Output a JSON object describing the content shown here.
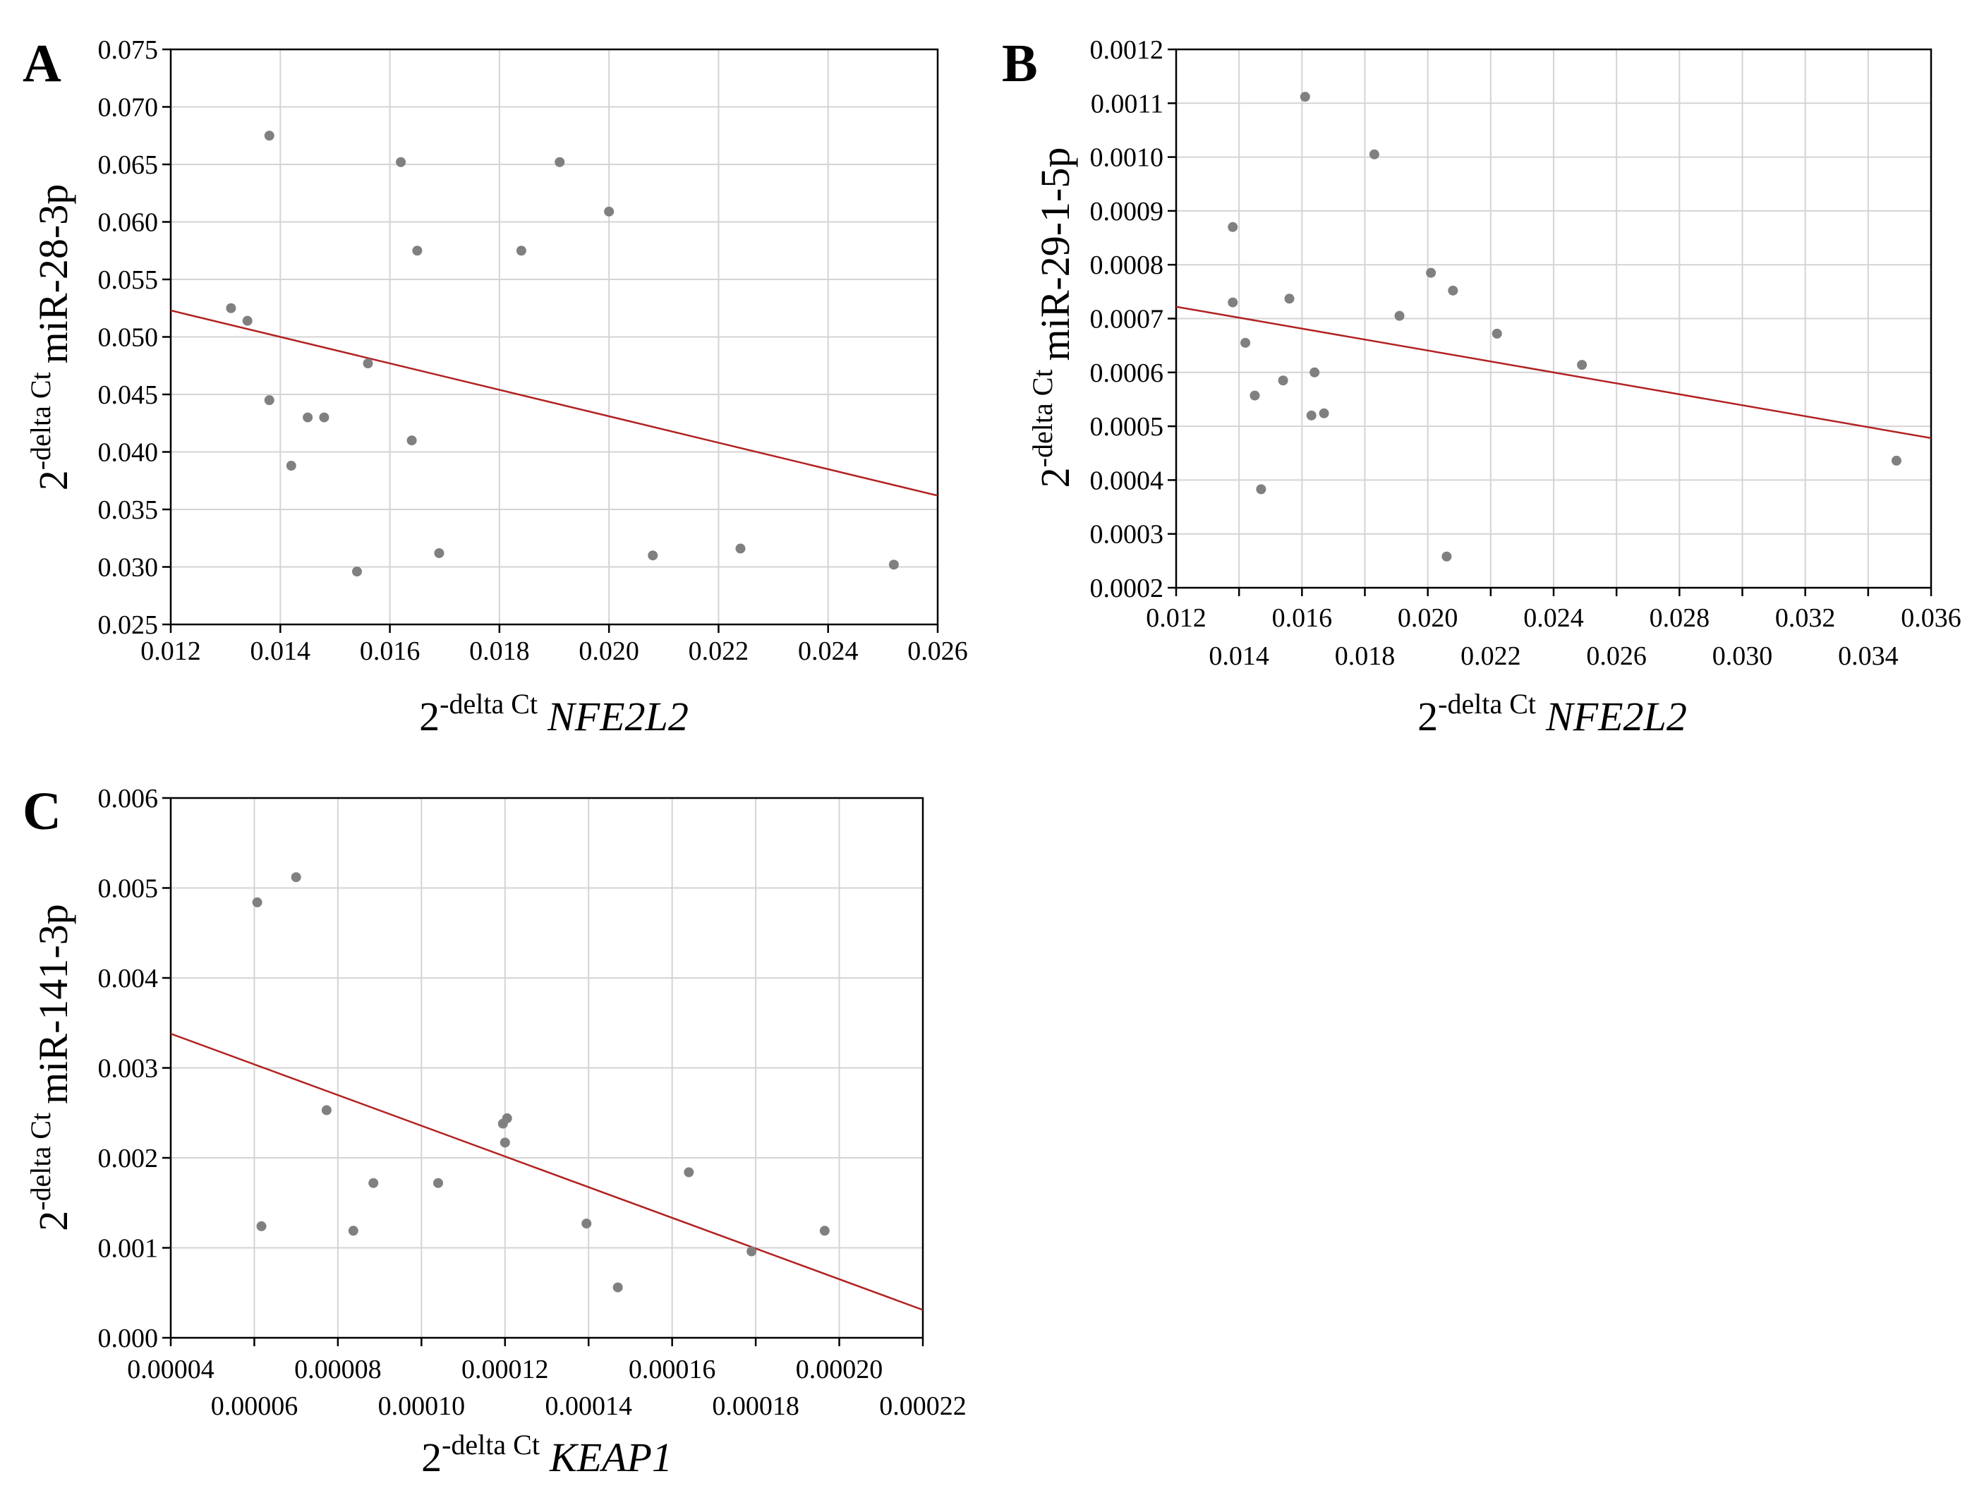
{
  "chart_data": [
    {
      "panel_label": "A",
      "type": "scatter",
      "xlabel": {
        "prefix": "2",
        "sup": "-delta Ct",
        "name": "NFE2L2"
      },
      "ylabel": {
        "prefix": "2",
        "sup": "-delta Ct",
        "name": "miR-28-3p"
      },
      "xlim": [
        0.012,
        0.026
      ],
      "ylim": [
        0.025,
        0.075
      ],
      "x_ticks": [
        0.012,
        0.014,
        0.016,
        0.018,
        0.02,
        0.022,
        0.024,
        0.026
      ],
      "x_tick_labels": [
        "0.012",
        "0.014",
        "0.016",
        "0.018",
        "0.020",
        "0.022",
        "0.024",
        "0.026"
      ],
      "x_tick_label_stagger": false,
      "y_ticks": [
        0.025,
        0.03,
        0.035,
        0.04,
        0.045,
        0.05,
        0.055,
        0.06,
        0.065,
        0.07,
        0.075
      ],
      "y_tick_labels": [
        "0.025",
        "0.030",
        "0.035",
        "0.040",
        "0.045",
        "0.050",
        "0.055",
        "0.060",
        "0.065",
        "0.070",
        "0.075"
      ],
      "grid": true,
      "points": [
        [
          0.0131,
          0.0525
        ],
        [
          0.0134,
          0.0514
        ],
        [
          0.0138,
          0.0675
        ],
        [
          0.0138,
          0.0445
        ],
        [
          0.0142,
          0.0388
        ],
        [
          0.0145,
          0.043
        ],
        [
          0.0148,
          0.043
        ],
        [
          0.0154,
          0.0296
        ],
        [
          0.0156,
          0.0477
        ],
        [
          0.0162,
          0.0652
        ],
        [
          0.0164,
          0.041
        ],
        [
          0.0165,
          0.0575
        ],
        [
          0.0169,
          0.0312
        ],
        [
          0.0184,
          0.0575
        ],
        [
          0.0191,
          0.0652
        ],
        [
          0.02,
          0.0609
        ],
        [
          0.0208,
          0.031
        ],
        [
          0.0224,
          0.0316
        ],
        [
          0.0252,
          0.0302
        ]
      ],
      "fit_line": [
        [
          0.012,
          0.0523
        ],
        [
          0.026,
          0.0362
        ]
      ],
      "fit_color": "#b22222",
      "point_color": "#808080"
    },
    {
      "panel_label": "B",
      "type": "scatter",
      "xlabel": {
        "prefix": "2",
        "sup": "-delta Ct",
        "name": "NFE2L2"
      },
      "ylabel": {
        "prefix": "2",
        "sup": "-delta Ct",
        "name": "miR-29-1-5p"
      },
      "xlim": [
        0.012,
        0.036
      ],
      "ylim": [
        0.0002,
        0.0012
      ],
      "x_ticks": [
        0.012,
        0.014,
        0.016,
        0.018,
        0.02,
        0.022,
        0.024,
        0.026,
        0.028,
        0.03,
        0.032,
        0.034,
        0.036
      ],
      "x_tick_labels": [
        "0.012",
        "0.014",
        "0.016",
        "0.018",
        "0.020",
        "0.022",
        "0.024",
        "0.026",
        "0.028",
        "0.030",
        "0.032",
        "0.034",
        "0.036"
      ],
      "x_tick_label_stagger": true,
      "y_ticks": [
        0.0002,
        0.0003,
        0.0004,
        0.0005,
        0.0006,
        0.0007,
        0.0008,
        0.0009,
        0.001,
        0.0011,
        0.0012
      ],
      "y_tick_labels": [
        "0.0002",
        "0.0003",
        "0.0004",
        "0.0005",
        "0.0006",
        "0.0007",
        "0.0008",
        "0.0009",
        "0.0010",
        "0.0011",
        "0.0012"
      ],
      "grid": true,
      "points": [
        [
          0.0138,
          0.00087
        ],
        [
          0.0138,
          0.00073
        ],
        [
          0.0142,
          0.000655
        ],
        [
          0.0145,
          0.000557
        ],
        [
          0.0147,
          0.000383
        ],
        [
          0.0154,
          0.000585
        ],
        [
          0.0156,
          0.000737
        ],
        [
          0.0161,
          0.001112
        ],
        [
          0.0163,
          0.00052
        ],
        [
          0.0164,
          0.0006
        ],
        [
          0.0167,
          0.000524
        ],
        [
          0.0183,
          0.001005
        ],
        [
          0.0191,
          0.000705
        ],
        [
          0.0201,
          0.000785
        ],
        [
          0.0206,
          0.000258
        ],
        [
          0.0208,
          0.000752
        ],
        [
          0.0222,
          0.000672
        ],
        [
          0.0249,
          0.000614
        ],
        [
          0.0349,
          0.000436
        ]
      ],
      "fit_line": [
        [
          0.012,
          0.000722
        ],
        [
          0.036,
          0.000478
        ]
      ],
      "fit_color": "#b22222",
      "point_color": "#808080"
    },
    {
      "panel_label": "C",
      "type": "scatter",
      "xlabel": {
        "prefix": "2",
        "sup": "-delta Ct",
        "name": "KEAP1"
      },
      "ylabel": {
        "prefix": "2",
        "sup": "-delta Ct",
        "name": "miR-141-3p"
      },
      "xlim": [
        4e-05,
        0.00022
      ],
      "ylim": [
        0.0,
        0.006
      ],
      "x_ticks": [
        4e-05,
        6e-05,
        8e-05,
        0.0001,
        0.00012,
        0.00014,
        0.00016,
        0.00018,
        0.0002,
        0.00022
      ],
      "x_tick_labels": [
        "0.00004",
        "0.00006",
        "0.00008",
        "0.00010",
        "0.00012",
        "0.00014",
        "0.00016",
        "0.00018",
        "0.00020",
        "0.00022"
      ],
      "x_tick_label_stagger": true,
      "y_ticks": [
        0.0,
        0.001,
        0.002,
        0.003,
        0.004,
        0.005,
        0.006
      ],
      "y_tick_labels": [
        "0.000",
        "0.001",
        "0.002",
        "0.003",
        "0.004",
        "0.005",
        "0.006"
      ],
      "grid": true,
      "points": [
        [
          6.07e-05,
          0.00484
        ],
        [
          6.17e-05,
          0.00124
        ],
        [
          7e-05,
          0.00512
        ],
        [
          7.73e-05,
          0.00253
        ],
        [
          8.37e-05,
          0.00119
        ],
        [
          8.85e-05,
          0.00172
        ],
        [
          0.000104,
          0.00172
        ],
        [
          0.0001195,
          0.00238
        ],
        [
          0.00012,
          0.00217
        ],
        [
          0.0001205,
          0.00244
        ],
        [
          0.0001395,
          0.00127
        ],
        [
          0.000147,
          0.00056
        ],
        [
          0.000164,
          0.00184
        ],
        [
          0.000179,
          0.00096
        ],
        [
          0.0001965,
          0.00119
        ]
      ],
      "fit_line": [
        [
          4e-05,
          0.00338
        ],
        [
          0.00022,
          0.00031
        ]
      ],
      "fit_color": "#b22222",
      "point_color": "#808080"
    }
  ]
}
